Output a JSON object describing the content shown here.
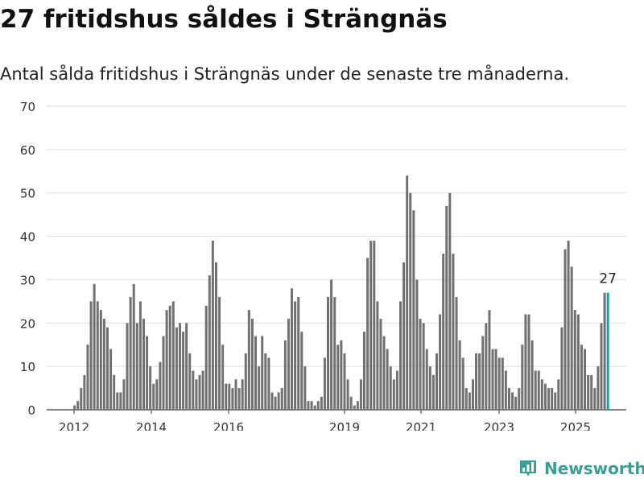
{
  "title": "27 fritidshus såldes i Strängnäs",
  "subtitle": "Antal sålda fritidshus i Strängnäs under de senaste tre månaderna.",
  "brand": {
    "name": "Newsworthy",
    "icon": "newsworthy-logo-icon",
    "color": "#3a9e94"
  },
  "chart_data": {
    "type": "bar",
    "title": "",
    "xlabel": "",
    "ylabel": "",
    "ylim": [
      0,
      70
    ],
    "yticks": [
      0,
      10,
      20,
      30,
      40,
      50,
      60,
      70
    ],
    "xtick_labels": [
      "2012",
      "2014",
      "2016",
      "2019",
      "2021",
      "2023",
      "2025"
    ],
    "grid": true,
    "colors": {
      "bar": "#717073",
      "highlight": "#20a199",
      "grid": "#dddddd"
    },
    "annotation": "27",
    "series": [
      {
        "values": [
          0,
          1,
          2,
          5,
          8,
          15,
          25,
          29,
          25,
          23,
          21,
          19,
          14,
          8,
          4,
          4,
          7,
          20,
          26,
          29,
          20,
          25,
          21,
          17,
          10,
          6,
          7,
          11,
          17,
          23,
          24,
          25,
          19,
          20,
          18,
          20,
          13,
          9,
          7,
          8,
          9,
          24,
          31,
          39,
          34,
          26,
          15,
          6,
          6,
          5,
          7,
          5,
          7,
          13,
          23,
          21,
          17,
          10,
          17,
          13,
          12,
          4,
          3,
          4,
          5,
          16,
          21,
          28,
          25,
          26,
          18,
          10,
          2,
          2,
          1,
          2,
          3,
          12,
          26,
          30,
          26,
          15,
          16,
          13,
          7,
          3,
          1,
          2,
          7,
          18,
          35,
          39,
          39,
          25,
          21,
          17,
          14,
          10,
          7,
          9,
          25,
          34,
          54,
          50,
          46,
          30,
          21,
          20,
          14,
          10,
          8,
          13,
          22,
          36,
          47,
          50,
          36,
          26,
          16,
          12,
          5,
          4,
          7,
          13,
          13,
          17,
          20,
          23,
          14,
          14,
          12,
          12,
          9,
          5,
          4,
          3,
          5,
          15,
          22,
          22,
          16,
          9,
          9,
          7,
          6,
          5,
          5,
          4,
          7,
          19,
          37,
          39,
          33,
          23,
          22,
          15,
          14,
          8,
          8,
          5,
          10,
          20,
          27,
          27
        ]
      }
    ]
  }
}
